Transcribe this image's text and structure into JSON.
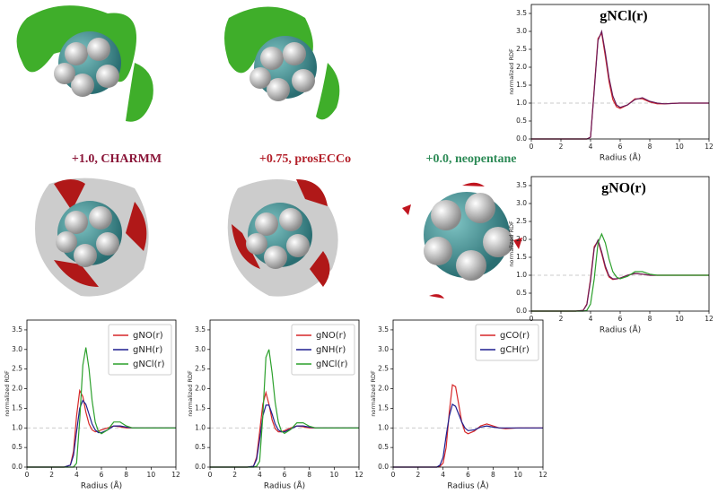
{
  "panel_labels": [
    {
      "text": "+1.0, CHARMM",
      "color": "#8a1538"
    },
    {
      "text": "+0.75, prosECCo",
      "color": "#b3202a"
    },
    {
      "text": "+0.0, neopentane",
      "color": "#2e8b57"
    }
  ],
  "chart_data": [
    {
      "type": "line",
      "title": "gNCl(r)",
      "xlabel": "Radius (Å)",
      "ylabel": "normalized RDF",
      "x": [
        0,
        1,
        2,
        3,
        3.5,
        3.75,
        4,
        4.25,
        4.5,
        4.75,
        5,
        5.25,
        5.5,
        5.75,
        6,
        6.5,
        7,
        7.5,
        8,
        8.5,
        9,
        10,
        11,
        12
      ],
      "series": [
        {
          "color": "#d62728",
          "values": [
            0,
            0,
            0,
            0,
            0,
            0,
            0.05,
            1.4,
            2.8,
            2.95,
            2.3,
            1.6,
            1.1,
            0.9,
            0.85,
            0.95,
            1.12,
            1.12,
            1.03,
            0.98,
            0.98,
            1.0,
            1.0,
            1.0
          ]
        },
        {
          "color": "#6a1b5a",
          "values": [
            0,
            0,
            0,
            0,
            0,
            0,
            0.05,
            1.35,
            2.75,
            3.0,
            2.4,
            1.7,
            1.2,
            0.95,
            0.88,
            0.95,
            1.1,
            1.15,
            1.05,
            1.0,
            0.98,
            1.0,
            1.0,
            1.0
          ]
        }
      ],
      "xlim": [
        0,
        12
      ],
      "ylim": [
        0,
        3.75
      ],
      "xticks": [
        0,
        2,
        4,
        6,
        8,
        10,
        12
      ],
      "yticks": [
        {
          "value": 0,
          "label": "0.0"
        },
        {
          "value": 0.5,
          "label": "0.5"
        },
        {
          "value": 1,
          "label": "1.0"
        },
        {
          "value": 1.5,
          "label": "1.5"
        },
        {
          "value": 2,
          "label": "2.0"
        },
        {
          "value": 2.5,
          "label": "2.5"
        },
        {
          "value": 3,
          "label": "3.0"
        },
        {
          "value": 3.5,
          "label": "3.5"
        }
      ],
      "hline": 1
    },
    {
      "type": "line",
      "title": "gNO(r)",
      "xlabel": "Radius (Å)",
      "ylabel": "normalized RDF",
      "x": [
        0,
        1,
        2,
        3,
        3.5,
        3.75,
        4,
        4.25,
        4.5,
        4.75,
        5,
        5.25,
        5.5,
        5.75,
        6,
        6.5,
        7,
        7.5,
        8,
        8.5,
        9,
        10,
        11,
        12
      ],
      "series": [
        {
          "color": "#d62728",
          "values": [
            0,
            0,
            0,
            0,
            0.02,
            0.2,
            0.9,
            1.8,
            1.95,
            1.6,
            1.2,
            0.95,
            0.88,
            0.9,
            0.92,
            1.0,
            1.05,
            1.03,
            1.0,
            1.0,
            1.0,
            1.0,
            1.0,
            1.0
          ]
        },
        {
          "color": "#6a1b5a",
          "values": [
            0,
            0,
            0,
            0,
            0.02,
            0.18,
            0.85,
            1.75,
            1.98,
            1.65,
            1.25,
            0.98,
            0.9,
            0.9,
            0.92,
            1.0,
            1.05,
            1.03,
            1.0,
            1.0,
            1.0,
            1.0,
            1.0,
            1.0
          ]
        },
        {
          "color": "#2ca02c",
          "values": [
            0,
            0,
            0,
            0,
            0,
            0.02,
            0.2,
            0.9,
            1.9,
            2.15,
            1.9,
            1.45,
            1.1,
            0.95,
            0.9,
            0.97,
            1.1,
            1.1,
            1.03,
            1.0,
            1.0,
            1.0,
            1.0,
            1.0
          ]
        }
      ],
      "xlim": [
        0,
        12
      ],
      "ylim": [
        0,
        3.75
      ],
      "xticks": [
        0,
        2,
        4,
        6,
        8,
        10,
        12
      ],
      "yticks": [
        {
          "value": 0,
          "label": "0.0"
        },
        {
          "value": 0.5,
          "label": "0.5"
        },
        {
          "value": 1,
          "label": "1.0"
        },
        {
          "value": 1.5,
          "label": "1.5"
        },
        {
          "value": 2,
          "label": "2.0"
        },
        {
          "value": 2.5,
          "label": "2.5"
        },
        {
          "value": 3,
          "label": "3.0"
        },
        {
          "value": 3.5,
          "label": "3.5"
        }
      ],
      "hline": 1
    },
    {
      "type": "line",
      "xlabel": "Radius (Å)",
      "ylabel": "normalized RDF",
      "legend": "upper right",
      "x": [
        0,
        1,
        2,
        3,
        3.5,
        3.75,
        4,
        4.25,
        4.5,
        4.75,
        5,
        5.25,
        5.5,
        5.75,
        6,
        6.5,
        7,
        7.5,
        8,
        8.5,
        9,
        10,
        11,
        12
      ],
      "series": [
        {
          "name": "gNO(r)",
          "color": "#d62728",
          "values": [
            0,
            0,
            0,
            0,
            0.05,
            0.4,
            1.3,
            1.95,
            1.8,
            1.4,
            1.1,
            0.95,
            0.9,
            0.92,
            0.95,
            1.0,
            1.05,
            1.03,
            1.0,
            1.0,
            1.0,
            1.0,
            1.0,
            1.0
          ]
        },
        {
          "name": "gNH(r)",
          "color": "#1f1f8f",
          "values": [
            0,
            0,
            0,
            0,
            0.05,
            0.3,
            0.9,
            1.5,
            1.7,
            1.6,
            1.35,
            1.1,
            0.95,
            0.88,
            0.88,
            0.95,
            1.05,
            1.05,
            1.02,
            1.0,
            1.0,
            1.0,
            1.0,
            1.0
          ]
        },
        {
          "name": "gNCl(r)",
          "color": "#2ca02c",
          "values": [
            0,
            0,
            0,
            0,
            0,
            0,
            0.1,
            1.2,
            2.6,
            3.05,
            2.5,
            1.7,
            1.15,
            0.92,
            0.85,
            0.95,
            1.15,
            1.15,
            1.05,
            1.0,
            1.0,
            1.0,
            1.0,
            1.0
          ]
        }
      ],
      "xlim": [
        0,
        12
      ],
      "ylim": [
        0,
        3.75
      ],
      "xticks": [
        0,
        2,
        4,
        6,
        8,
        10,
        12
      ],
      "yticks": [
        {
          "value": 0,
          "label": "0.0"
        },
        {
          "value": 0.5,
          "label": "0.5"
        },
        {
          "value": 1,
          "label": "1.0"
        },
        {
          "value": 1.5,
          "label": "1.5"
        },
        {
          "value": 2,
          "label": "2.0"
        },
        {
          "value": 2.5,
          "label": "2.5"
        },
        {
          "value": 3,
          "label": "3.0"
        },
        {
          "value": 3.5,
          "label": "3.5"
        }
      ],
      "hline": 1
    },
    {
      "type": "line",
      "xlabel": "Radius (Å)",
      "ylabel": "normalized RDF",
      "legend": "upper right",
      "x": [
        0,
        1,
        2,
        3,
        3.5,
        3.75,
        4,
        4.25,
        4.5,
        4.75,
        5,
        5.25,
        5.5,
        5.75,
        6,
        6.5,
        7,
        7.5,
        8,
        8.5,
        9,
        10,
        11,
        12
      ],
      "series": [
        {
          "name": "gNO(r)",
          "color": "#d62728",
          "values": [
            0,
            0,
            0,
            0,
            0.02,
            0.25,
            0.9,
            1.6,
            1.9,
            1.6,
            1.2,
            0.98,
            0.9,
            0.9,
            0.93,
            1.0,
            1.05,
            1.03,
            1.0,
            1.0,
            1.0,
            1.0,
            1.0,
            1.0
          ]
        },
        {
          "name": "gNH(r)",
          "color": "#1f1f8f",
          "values": [
            0,
            0,
            0,
            0,
            0.02,
            0.2,
            0.7,
            1.3,
            1.58,
            1.58,
            1.35,
            1.1,
            0.95,
            0.9,
            0.9,
            0.97,
            1.05,
            1.05,
            1.02,
            1.0,
            1.0,
            1.0,
            1.0,
            1.0
          ]
        },
        {
          "name": "gNCl(r)",
          "color": "#2ca02c",
          "values": [
            0,
            0,
            0,
            0,
            0,
            0.02,
            0.15,
            1.3,
            2.8,
            3.0,
            2.4,
            1.65,
            1.15,
            0.92,
            0.86,
            0.96,
            1.13,
            1.13,
            1.04,
            1.0,
            1.0,
            1.0,
            1.0,
            1.0
          ]
        }
      ],
      "xlim": [
        0,
        12
      ],
      "ylim": [
        0,
        3.75
      ],
      "xticks": [
        0,
        2,
        4,
        6,
        8,
        10,
        12
      ],
      "yticks": [
        {
          "value": 0,
          "label": "0.0"
        },
        {
          "value": 0.5,
          "label": "0.5"
        },
        {
          "value": 1,
          "label": "1.0"
        },
        {
          "value": 1.5,
          "label": "1.5"
        },
        {
          "value": 2,
          "label": "2.0"
        },
        {
          "value": 2.5,
          "label": "2.5"
        },
        {
          "value": 3,
          "label": "3.0"
        },
        {
          "value": 3.5,
          "label": "3.5"
        }
      ],
      "hline": 1
    },
    {
      "type": "line",
      "xlabel": "Radius (Å)",
      "ylabel": "normalized RDF",
      "legend": "upper right",
      "x": [
        0,
        1,
        2,
        3,
        3.5,
        3.75,
        4,
        4.25,
        4.5,
        4.75,
        5,
        5.25,
        5.5,
        5.75,
        6,
        6.5,
        7,
        7.5,
        8,
        8.5,
        9,
        10,
        11,
        12
      ],
      "series": [
        {
          "name": "gCO(r)",
          "color": "#d62728",
          "values": [
            0,
            0,
            0,
            0,
            0,
            0.02,
            0.1,
            0.5,
            1.4,
            2.1,
            2.05,
            1.6,
            1.15,
            0.9,
            0.85,
            0.92,
            1.05,
            1.1,
            1.05,
            1.0,
            0.98,
            1.0,
            1.0,
            1.0
          ]
        },
        {
          "name": "gCH(r)",
          "color": "#1f1f8f",
          "values": [
            0,
            0,
            0,
            0,
            0,
            0.05,
            0.25,
            0.8,
            1.3,
            1.6,
            1.55,
            1.35,
            1.15,
            1.0,
            0.93,
            0.95,
            1.02,
            1.05,
            1.02,
            1.0,
            1.0,
            1.0,
            1.0,
            1.0
          ]
        }
      ],
      "xlim": [
        0,
        12
      ],
      "ylim": [
        0,
        3.75
      ],
      "xticks": [
        0,
        2,
        4,
        6,
        8,
        10,
        12
      ],
      "yticks": [
        {
          "value": 0,
          "label": "0.0"
        },
        {
          "value": 0.5,
          "label": "0.5"
        },
        {
          "value": 1,
          "label": "1.0"
        },
        {
          "value": 1.5,
          "label": "1.5"
        },
        {
          "value": 2,
          "label": "2.0"
        },
        {
          "value": 2.5,
          "label": "2.5"
        },
        {
          "value": 3,
          "label": "3.0"
        },
        {
          "value": 3.5,
          "label": "3.5"
        }
      ],
      "hline": 1
    }
  ]
}
